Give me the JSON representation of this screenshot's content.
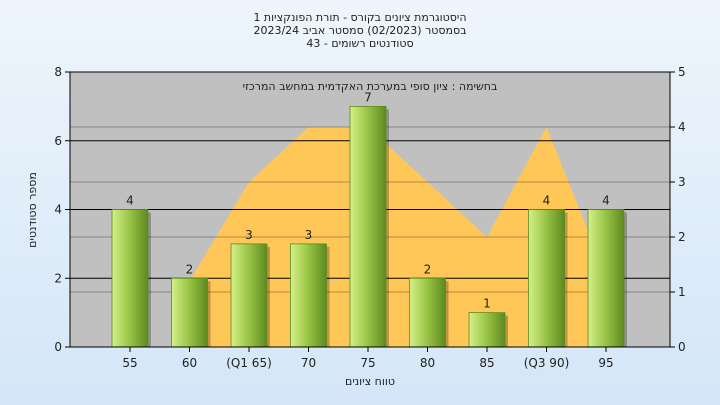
{
  "chart_data": {
    "type": "bar",
    "title_lines": [
      "היסטוגרמת ציונים בקורס - תורת הפונקציות 1",
      "בסמסטר  (02/2023)  סמסטר אביב 2023/24",
      "סטודנטים רשומים - 43"
    ],
    "note": "בחשימה : ציון סופי במערכת האקדמית במחשב המרכזי",
    "xlabel": "טווח ציונים",
    "ylabel": "מספר סטודנטים",
    "categories": [
      "55",
      "60",
      "(Q1 65)",
      "70",
      "75",
      "80",
      "85",
      "(Q3 90)",
      "95"
    ],
    "values": [
      4,
      2,
      3,
      3,
      7,
      2,
      1,
      4,
      4
    ],
    "ylim": [
      0,
      8
    ],
    "yticks": [
      "0",
      "2",
      "4",
      "6",
      "8"
    ],
    "y2lim": [
      0,
      5
    ],
    "y2ticks": [
      "0",
      "1",
      "2",
      "3",
      "4",
      "5"
    ],
    "area_series": {
      "points": [
        {
          "category": "60",
          "value": 0
        },
        {
          "category": "60",
          "value": 1.2
        },
        {
          "category": "(Q1 65)",
          "value": 3.0
        },
        {
          "category": "70",
          "value": 4.0
        },
        {
          "category": "75",
          "value": 4.0
        },
        {
          "category": "80",
          "value": 3.0
        },
        {
          "category": "85",
          "value": 2.0
        },
        {
          "category": "(Q3 90)",
          "value": 4.0
        },
        {
          "category": "95",
          "value": 1.3
        },
        {
          "category": "95",
          "value": 0
        }
      ]
    },
    "colors": {
      "bar_light": "#d4f08a",
      "bar_mid": "#9ec84a",
      "bar_dark": "#5c8a1e",
      "area": "#ffc658",
      "plot_bg": "#c0c0c0",
      "grid": "#000000"
    },
    "grid": true
  }
}
